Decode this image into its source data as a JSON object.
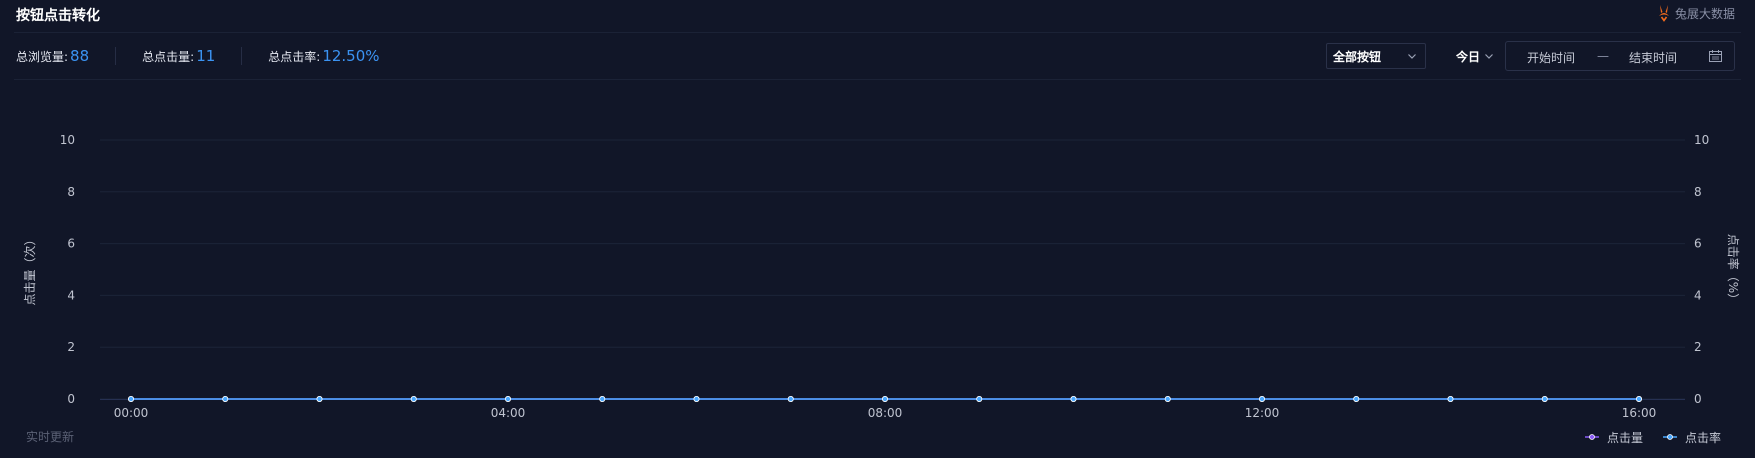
{
  "header": {
    "title": "按钮点击转化",
    "brand": "兔展大数据"
  },
  "stats": [
    {
      "label": "总浏览量:",
      "value": "88"
    },
    {
      "label": "总点击量:",
      "value": "11"
    },
    {
      "label": "总点击率:",
      "value": "12.50%"
    }
  ],
  "filters": {
    "button_select": "全部按钮",
    "range": "今日",
    "start_placeholder": "开始时间",
    "separator": "—",
    "end_placeholder": "结束时间"
  },
  "footer": {
    "live_note": "实时更新"
  },
  "chart_data": {
    "type": "line",
    "x": [
      "00:00",
      "01:00",
      "02:00",
      "03:00",
      "04:00",
      "05:00",
      "06:00",
      "07:00",
      "08:00",
      "09:00",
      "10:00",
      "11:00",
      "12:00",
      "13:00",
      "14:00",
      "15:00",
      "16:00"
    ],
    "x_tick_labels": [
      "00:00",
      "04:00",
      "08:00",
      "12:00",
      "16:00"
    ],
    "y_left": {
      "label": "点击量（次）",
      "range": [
        0,
        10
      ],
      "ticks": [
        "0",
        "2",
        "4",
        "6",
        "8",
        "10"
      ]
    },
    "y_right": {
      "label": "点击率（%）",
      "range": [
        0,
        10
      ],
      "ticks": [
        "0",
        "2",
        "4",
        "6",
        "8",
        "10"
      ]
    },
    "series": [
      {
        "name": "点击量",
        "axis": "left",
        "color": "#8b5cf6",
        "values": [
          0,
          0,
          0,
          0,
          0,
          0,
          0,
          0,
          0,
          0,
          0,
          0,
          0,
          0,
          0,
          0,
          0
        ]
      },
      {
        "name": "点击率",
        "axis": "right",
        "color": "#4aa8ff",
        "values": [
          0,
          0,
          0,
          0,
          0,
          0,
          0,
          0,
          0,
          0,
          0,
          0,
          0,
          0,
          0,
          0,
          0
        ]
      }
    ],
    "grid": true,
    "legend_position": "bottom-right"
  }
}
